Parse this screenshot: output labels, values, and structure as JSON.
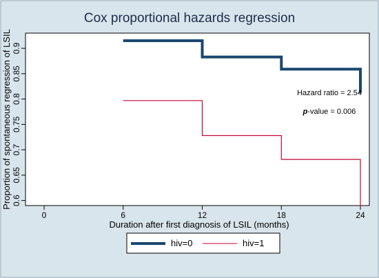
{
  "chart_data": {
    "type": "line",
    "step": true,
    "title": "Cox proportional hazards regression",
    "xlabel": "Duration after first diagnosis of LSIL (months)",
    "ylabel": "Proportion of spontaneous regression of LSIL",
    "xlim": [
      0,
      24
    ],
    "ylim": [
      0.59,
      0.93
    ],
    "xticks": [
      0,
      6,
      12,
      18,
      24
    ],
    "yticks": [
      0.6,
      0.65,
      0.7,
      0.75,
      0.8,
      0.85,
      0.9
    ],
    "grid": false,
    "legend_position": "bottom",
    "series": [
      {
        "name": "hiv=0",
        "color": "#1a476f",
        "x": [
          6,
          12,
          12,
          18,
          18,
          24,
          24
        ],
        "y": [
          0.915,
          0.915,
          0.883,
          0.883,
          0.859,
          0.859,
          0.812
        ]
      },
      {
        "name": "hiv=1",
        "color": "#c10534",
        "x": [
          6,
          12,
          12,
          18,
          18,
          24,
          24
        ],
        "y": [
          0.797,
          0.797,
          0.728,
          0.728,
          0.681,
          0.681,
          0.588
        ]
      }
    ],
    "annotations": {
      "hazard_ratio": "Hazard ratio = 2.54",
      "p_label": "p",
      "p_value_text": "-value = 0.006"
    }
  }
}
